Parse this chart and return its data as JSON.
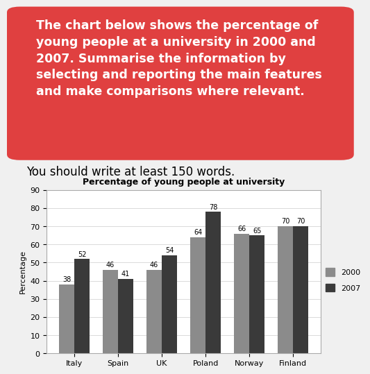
{
  "title": "Percentage of young people at university",
  "categories": [
    "Italy",
    "Spain",
    "UK",
    "Poland",
    "Norway",
    "Finland"
  ],
  "values_2000": [
    38,
    46,
    46,
    64,
    66,
    70
  ],
  "values_2007": [
    52,
    41,
    54,
    78,
    65,
    70
  ],
  "ylabel": "Percentage",
  "ylim": [
    0,
    90
  ],
  "yticks": [
    0,
    10,
    20,
    30,
    40,
    50,
    60,
    70,
    80,
    90
  ],
  "color_2000": "#8B8B8B",
  "color_2007": "#3A3A3A",
  "bar_width": 0.35,
  "legend_labels": [
    "2000",
    "2007"
  ],
  "header_text_line1": "The chart below shows the percentage of",
  "header_text_line2": "young people at a university in 2000 and",
  "header_text_line3": "2007. Summarise the information by",
  "header_text_line4": "selecting and reporting the main features",
  "header_text_line5": "and make comparisons where relevant.",
  "subheader_text": "You should write at least 150 words.",
  "header_bg_color": "#E04040",
  "header_text_color": "#ffffff",
  "subheader_text_color": "#000000",
  "bg_color": "#f0f0f0",
  "chart_bg_color": "#ffffff",
  "title_fontsize": 9,
  "axis_fontsize": 8,
  "label_fontsize": 7,
  "header_fontsize": 12.5,
  "subheader_fontsize": 12
}
